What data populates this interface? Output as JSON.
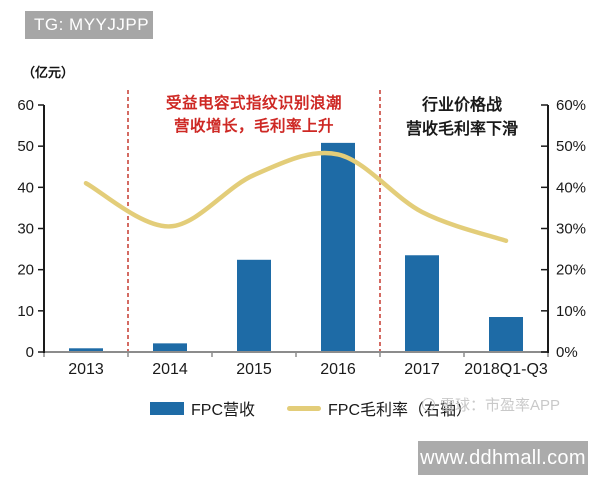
{
  "header": {
    "tag_label": "TG: MYYJJPP"
  },
  "watermark": {
    "brand_text": "雪球：市盈率APP"
  },
  "footer": {
    "url_text": "www.ddhmall.com"
  },
  "chart_data": {
    "type": "bar+line-combo",
    "categories": [
      "2013",
      "2014",
      "2015",
      "2016",
      "2017",
      "2018Q1-Q3"
    ],
    "series": [
      {
        "name": "FPC营收",
        "type": "bar",
        "axis": "left",
        "unit": "亿元",
        "values": [
          0.9,
          2.1,
          22.4,
          50.8,
          23.5,
          8.5
        ],
        "color": "#1e6ba6"
      },
      {
        "name": "FPC毛利率（右轴）",
        "type": "line",
        "axis": "right",
        "unit": "%",
        "values": [
          41,
          30.5,
          43,
          48,
          34,
          27
        ],
        "color": "#e3cd79"
      }
    ],
    "left_axis": {
      "title": "（亿元）",
      "min": 0,
      "max": 60,
      "step": 10,
      "tick_labels": [
        "0",
        "10",
        "20",
        "30",
        "40",
        "50",
        "60"
      ]
    },
    "right_axis": {
      "min": 0,
      "max": 60,
      "step": 10,
      "tick_labels": [
        "0%",
        "10%",
        "20%",
        "30%",
        "40%",
        "50%",
        "60%"
      ]
    },
    "dividers": {
      "color": "#c9463c",
      "style": "dashed",
      "slot_boundaries": [
        1,
        4
      ],
      "between_categories": [
        [
          "2013",
          "2014"
        ],
        [
          "2016",
          "2017"
        ]
      ]
    },
    "annotations": [
      {
        "text_lines": [
          "受益电容式指纹识别浪潮",
          "营收增长，毛利率上升"
        ],
        "color": "#ce2824",
        "region": "2014-2016"
      },
      {
        "text_lines": [
          "行业价格战",
          "营收毛利率下滑"
        ],
        "color": "#1a1a1a",
        "region": "2017-2018"
      }
    ],
    "legend_position": "bottom",
    "grid": false
  }
}
